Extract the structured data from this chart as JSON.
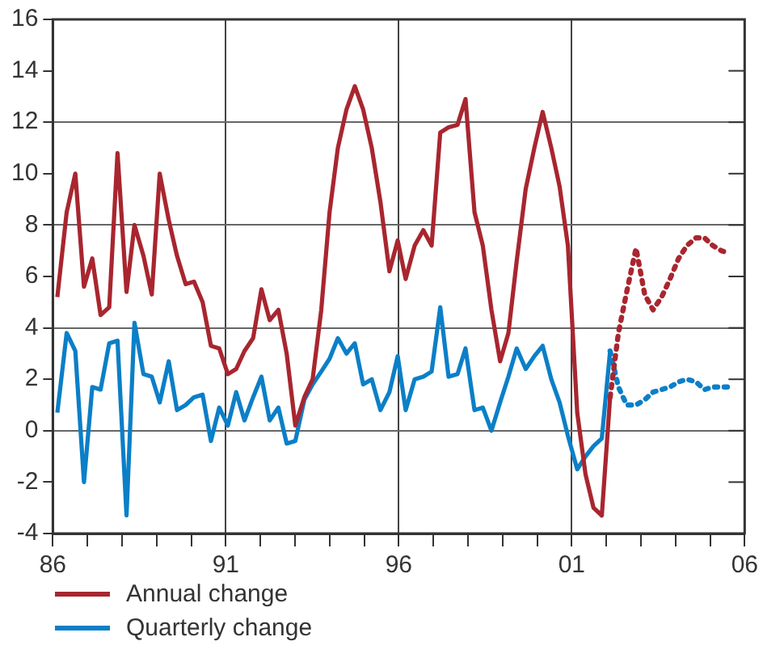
{
  "chart_data": {
    "type": "line",
    "xlim": [
      1986,
      2006
    ],
    "xticks": [
      {
        "value": 1986,
        "label": "86"
      },
      {
        "value": 1987,
        "label": null
      },
      {
        "value": 1988,
        "label": null
      },
      {
        "value": 1989,
        "label": null
      },
      {
        "value": 1990,
        "label": null
      },
      {
        "value": 1991,
        "label": "91"
      },
      {
        "value": 1992,
        "label": null
      },
      {
        "value": 1993,
        "label": null
      },
      {
        "value": 1994,
        "label": null
      },
      {
        "value": 1995,
        "label": null
      },
      {
        "value": 1996,
        "label": "96"
      },
      {
        "value": 1997,
        "label": null
      },
      {
        "value": 1998,
        "label": null
      },
      {
        "value": 1999,
        "label": null
      },
      {
        "value": 2000,
        "label": null
      },
      {
        "value": 2001,
        "label": "01"
      },
      {
        "value": 2002,
        "label": null
      },
      {
        "value": 2003,
        "label": null
      },
      {
        "value": 2004,
        "label": null
      },
      {
        "value": 2005,
        "label": null
      },
      {
        "value": 2006,
        "label": "06"
      }
    ],
    "ylim": [
      -4,
      16
    ],
    "yticks": [
      -4,
      -2,
      0,
      2,
      4,
      6,
      8,
      10,
      12,
      14,
      16
    ],
    "grid": true,
    "legend": "bottom",
    "marker": "none",
    "series": [
      {
        "name": "Annual change",
        "color": "#a8262f",
        "line_style": "solid",
        "x": [
          1986.13,
          1986.4,
          1986.65,
          1986.9,
          1987.14,
          1987.38,
          1987.63,
          1987.87,
          1988.13,
          1988.36,
          1988.62,
          1988.86,
          1989.09,
          1989.35,
          1989.59,
          1989.84,
          1990.08,
          1990.33,
          1990.57,
          1990.81,
          1991.06,
          1991.3,
          1991.54,
          1991.79,
          1992.03,
          1992.27,
          1992.52,
          1992.76,
          1993.01,
          1993.27,
          1993.51,
          1993.76,
          1994.0,
          1994.24,
          1994.49,
          1994.73,
          1994.97,
          1995.22,
          1995.47,
          1995.73,
          1995.97,
          1996.2,
          1996.46,
          1996.71,
          1996.95,
          1997.2,
          1997.44,
          1997.7,
          1997.93,
          1998.19,
          1998.43,
          1998.68,
          1998.93,
          1999.17,
          1999.41,
          1999.67,
          1999.92,
          2000.16,
          2000.41,
          2000.65,
          2000.89,
          2001.16,
          2001.4,
          2001.63,
          2001.87,
          2002.11
        ],
        "values": [
          5.2,
          8.5,
          10.0,
          5.6,
          6.7,
          4.5,
          4.8,
          10.8,
          5.4,
          8.0,
          6.8,
          5.3,
          10.0,
          8.2,
          6.8,
          5.7,
          5.8,
          5.0,
          3.3,
          3.2,
          2.2,
          2.4,
          3.1,
          3.6,
          5.5,
          4.3,
          4.7,
          3.0,
          0.2,
          1.3,
          2.0,
          4.7,
          8.5,
          11.0,
          12.5,
          13.4,
          12.5,
          11.0,
          8.9,
          6.2,
          7.4,
          5.9,
          7.2,
          7.8,
          7.2,
          11.6,
          11.8,
          11.9,
          12.9,
          8.5,
          7.2,
          4.7,
          2.7,
          3.8,
          6.6,
          9.4,
          11.0,
          12.4,
          11.0,
          9.5,
          7.2,
          0.7,
          -1.7,
          -3.0,
          -3.3,
          1.3
        ]
      },
      {
        "name": "Quarterly change",
        "color": "#0b7fc7",
        "line_style": "solid",
        "x": [
          1986.13,
          1986.4,
          1986.65,
          1986.9,
          1987.14,
          1987.38,
          1987.63,
          1987.87,
          1988.13,
          1988.36,
          1988.62,
          1988.86,
          1989.09,
          1989.35,
          1989.59,
          1989.84,
          1990.08,
          1990.33,
          1990.57,
          1990.81,
          1991.06,
          1991.3,
          1991.54,
          1991.79,
          1992.03,
          1992.27,
          1992.52,
          1992.76,
          1993.01,
          1993.27,
          1993.51,
          1993.76,
          1994.0,
          1994.24,
          1994.49,
          1994.73,
          1994.97,
          1995.22,
          1995.47,
          1995.73,
          1995.97,
          1996.2,
          1996.46,
          1996.71,
          1996.95,
          1997.2,
          1997.44,
          1997.7,
          1997.93,
          1998.19,
          1998.43,
          1998.68,
          1998.93,
          1999.17,
          1999.41,
          1999.67,
          1999.92,
          2000.16,
          2000.41,
          2000.65,
          2000.89,
          2001.16,
          2001.4,
          2001.63,
          2001.87,
          2002.11
        ],
        "values": [
          0.7,
          3.8,
          3.1,
          -2.0,
          1.7,
          1.6,
          3.4,
          3.5,
          -3.3,
          4.2,
          2.2,
          2.1,
          1.1,
          2.7,
          0.8,
          1.0,
          1.3,
          1.4,
          -0.4,
          0.9,
          0.2,
          1.5,
          0.4,
          1.3,
          2.1,
          0.4,
          0.9,
          -0.5,
          -0.4,
          1.2,
          1.8,
          2.3,
          2.8,
          3.6,
          3.0,
          3.4,
          1.8,
          2.0,
          0.8,
          1.5,
          2.9,
          0.8,
          2.0,
          2.1,
          2.3,
          4.8,
          2.1,
          2.2,
          3.2,
          0.8,
          0.9,
          0.0,
          1.1,
          2.1,
          3.2,
          2.4,
          2.9,
          3.3,
          2.0,
          1.1,
          -0.2,
          -1.5,
          -1.0,
          -0.6,
          -0.3,
          3.1
        ]
      },
      {
        "color": "#a8262f",
        "line_style": "dotted",
        "x": [
          2002.11,
          2002.35,
          2002.59,
          2002.86,
          2003.11,
          2003.35,
          2003.6,
          2003.84,
          2004.09,
          2004.33,
          2004.59,
          2004.84,
          2005.08,
          2005.33,
          2005.54
        ],
        "values": [
          1.3,
          3.8,
          5.4,
          7.1,
          5.3,
          4.7,
          5.2,
          5.9,
          6.7,
          7.2,
          7.5,
          7.5,
          7.2,
          7.0,
          6.9
        ]
      },
      {
        "color": "#0b7fc7",
        "line_style": "dotted",
        "x": [
          2002.11,
          2002.35,
          2002.59,
          2002.86,
          2003.11,
          2003.35,
          2003.6,
          2003.84,
          2004.09,
          2004.33,
          2004.59,
          2004.84,
          2005.08,
          2005.33,
          2005.54
        ],
        "values": [
          3.1,
          1.7,
          1.0,
          1.0,
          1.2,
          1.5,
          1.6,
          1.7,
          1.9,
          2.0,
          1.9,
          1.6,
          1.7,
          1.7,
          1.7
        ]
      }
    ]
  }
}
